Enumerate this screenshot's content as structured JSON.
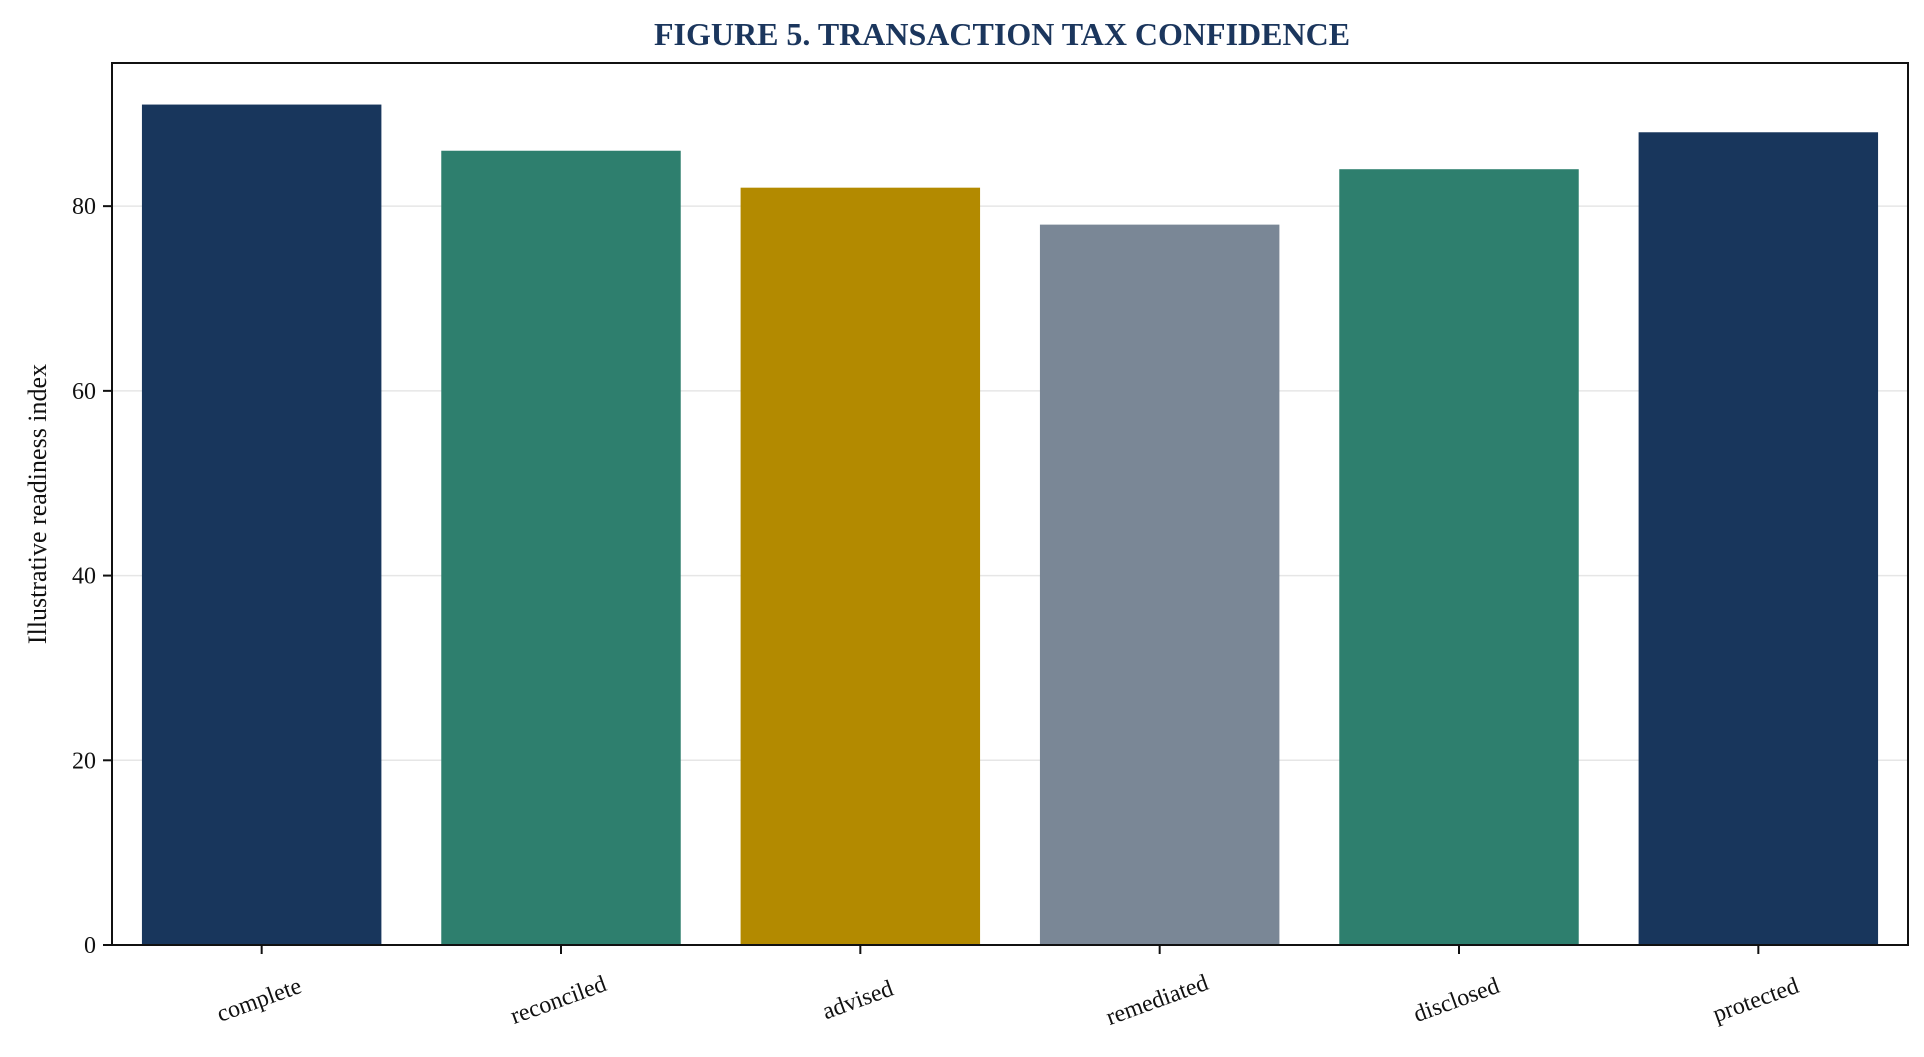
{
  "chart_data": {
    "type": "bar",
    "title": "FIGURE 5. TRANSACTION TAX CONFIDENCE",
    "xlabel": "",
    "ylabel": "Illustrative readiness index",
    "categories": [
      "complete",
      "reconciled",
      "advised",
      "remediated",
      "disclosed",
      "protected"
    ],
    "values": [
      91,
      86,
      82,
      78,
      84,
      88
    ],
    "bar_colors": [
      "#18365c",
      "#2e7f6e",
      "#b38a00",
      "#7a8796",
      "#2e7f6e",
      "#18365c"
    ],
    "ylim": [
      0,
      95.5
    ],
    "yticks": [
      0,
      20,
      40,
      60,
      80
    ],
    "ytick_labels": [
      "0",
      "20",
      "40",
      "60",
      "80"
    ],
    "grid": "horizontal",
    "legend": "none"
  },
  "colors": {
    "title": "#1b365d",
    "axis": "#111111",
    "grid": "#e6e6e6",
    "background": "#ffffff"
  }
}
